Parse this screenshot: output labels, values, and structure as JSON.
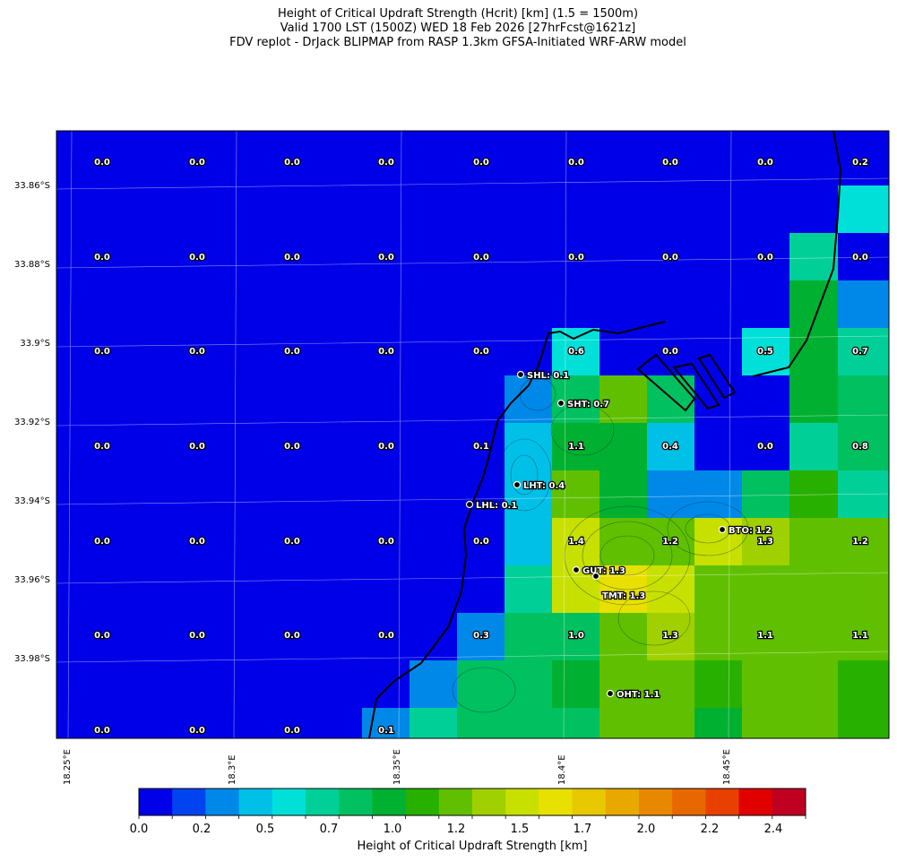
{
  "title": {
    "line1": "Height of Critical Updraft Strength (Hcrit) [km] (1.5 = 1500m)",
    "line2": "Valid 1700 LST (1500Z) WED 18 Feb 2026 [27hrFcst@1621z]",
    "line3": "FDV replot - DrJack BLIPMAP from RASP 1.3km GFSA-Initiated WRF-ARW model"
  },
  "lat_labels": [
    "33.86°S",
    "33.88°S",
    "33.9°S",
    "33.92°S",
    "33.94°S",
    "33.96°S",
    "33.98°S"
  ],
  "lon_labels": [
    "18.25°E",
    "18.3°E",
    "18.35°E",
    "18.4°E",
    "18.45°E"
  ],
  "value_grid": [
    [
      "0.0",
      "0.0",
      "0.0",
      "0.0",
      "0.0",
      "0.0",
      "0.0",
      "0.0",
      "0.2"
    ],
    [
      "0.0",
      "0.0",
      "0.0",
      "0.0",
      "0.0",
      "0.0",
      "0.0",
      "0.0",
      "0.0"
    ],
    [
      "0.0",
      "0.0",
      "0.0",
      "0.0",
      "0.0",
      "0.6",
      "0.0",
      "0.5",
      "0.7"
    ],
    [
      "0.0",
      "0.0",
      "0.0",
      "0.0",
      "0.1",
      "1.1",
      "0.4",
      "0.0",
      "0.8"
    ],
    [
      "0.0",
      "0.0",
      "0.0",
      "0.0",
      "0.0",
      "1.4",
      "1.2",
      "1.3",
      "1.2"
    ],
    [
      "0.0",
      "0.0",
      "0.0",
      "0.0",
      "0.3",
      "1.0",
      "1.3",
      "1.1",
      "1.1"
    ],
    [
      "0.0",
      "0.0",
      "0.0",
      "0.1",
      "",
      "",
      "",
      "",
      ""
    ]
  ],
  "stations": [
    {
      "name": "SHL: 0.1",
      "value": 0.1
    },
    {
      "name": "SHT: 0.7",
      "value": 0.7
    },
    {
      "name": "LHT: 0.4",
      "value": 0.4
    },
    {
      "name": "LHL: 0.1",
      "value": 0.1
    },
    {
      "name": "BTO: 1.2",
      "value": 1.2
    },
    {
      "name": "GUT: 1.3",
      "value": 1.3
    },
    {
      "name": "TMT: 1.3",
      "value": 1.3
    },
    {
      "name": "OHT: 1.1",
      "value": 1.1
    }
  ],
  "colorbar": {
    "title": "Height of Critical Updraft Strength [km]",
    "tick_labels": [
      "0.0",
      "0.2",
      "0.5",
      "0.7",
      "1.0",
      "1.2",
      "1.5",
      "1.7",
      "2.0",
      "2.2",
      "2.4"
    ],
    "colors": [
      "#0000e8",
      "#0044f0",
      "#0088e8",
      "#00c0e8",
      "#00e0d8",
      "#00d098",
      "#00c060",
      "#00b030",
      "#28b000",
      "#60c000",
      "#a0d000",
      "#c8e000",
      "#e8e000",
      "#e8c800",
      "#e8a800",
      "#e88800",
      "#e86800",
      "#e84000",
      "#e00000",
      "#c00020"
    ]
  }
}
